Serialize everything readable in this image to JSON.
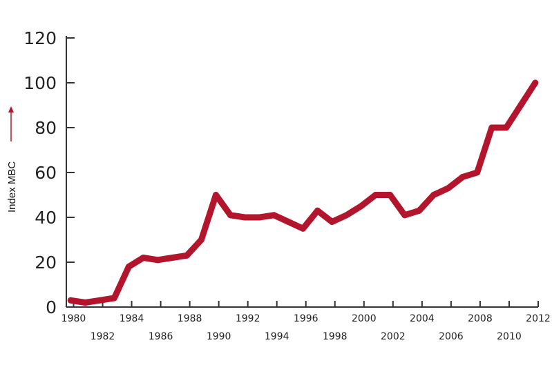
{
  "chart_data": {
    "type": "line",
    "title": "",
    "xlabel": "",
    "ylabel": "Index MBC",
    "ylim": [
      0,
      120
    ],
    "xlim": [
      1979.5,
      2012
    ],
    "grid": false,
    "y_ticks": [
      "0",
      "20",
      "40",
      "60",
      "80",
      "100",
      "120"
    ],
    "x_ticks_upper": [
      "1980",
      "1984",
      "1988",
      "1992",
      "1996",
      "2000",
      "2004",
      "2008",
      "2012"
    ],
    "x_ticks_lower": [
      "1982",
      "1986",
      "1990",
      "1994",
      "1998",
      "2002",
      "2006",
      "2010"
    ],
    "series": [
      {
        "color": "#b3152c",
        "points": [
          [
            1979.8,
            3
          ],
          [
            1980.8,
            2
          ],
          [
            1981.8,
            3
          ],
          [
            1982.8,
            4
          ],
          [
            1983.8,
            18
          ],
          [
            1984.8,
            22
          ],
          [
            1985.8,
            21
          ],
          [
            1986.8,
            22
          ],
          [
            1987.8,
            23
          ],
          [
            1988.8,
            30
          ],
          [
            1989.8,
            50
          ],
          [
            1990.8,
            41
          ],
          [
            1991.8,
            40
          ],
          [
            1992.8,
            40
          ],
          [
            1993.8,
            41
          ],
          [
            1994.8,
            38
          ],
          [
            1995.8,
            35
          ],
          [
            1996.8,
            43
          ],
          [
            1997.8,
            38
          ],
          [
            1998.8,
            41
          ],
          [
            1999.8,
            45
          ],
          [
            2000.8,
            50
          ],
          [
            2001.8,
            50
          ],
          [
            2002.8,
            41
          ],
          [
            2003.8,
            43
          ],
          [
            2004.8,
            50
          ],
          [
            2005.8,
            53
          ],
          [
            2006.8,
            58
          ],
          [
            2007.8,
            60
          ],
          [
            2008.8,
            80
          ],
          [
            2009.8,
            80
          ],
          [
            2010.8,
            90
          ],
          [
            2011.8,
            100
          ]
        ]
      }
    ],
    "colors": {
      "line": "#b3152c",
      "axis": "#333333",
      "arrow": "#b3152c"
    }
  }
}
